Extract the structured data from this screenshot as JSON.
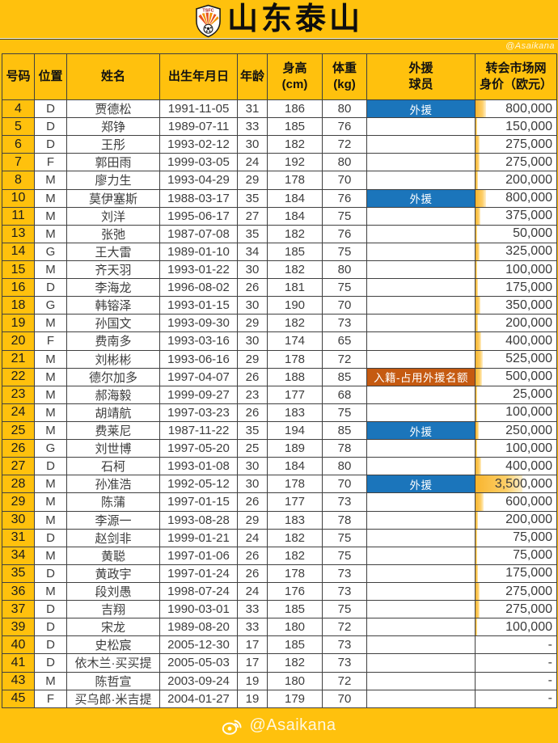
{
  "header": {
    "title": "山东泰山",
    "crest": "tsfc-crest",
    "watermark": "@Asaikana"
  },
  "footer": {
    "icon": "weibo-icon",
    "watermark": "@Asaikana"
  },
  "colors": {
    "background_yellow": "#FFC10D",
    "foreign_badge_blue": "#1B75BB",
    "naturalized_badge_orange": "#C55A11",
    "databar_orange": "#F8B52E"
  },
  "table": {
    "columns": [
      "号码",
      "位置",
      "姓名",
      "出生年月日",
      "年龄",
      "身高\n(cm)",
      "体重\n(kg)",
      "外援\n球员",
      "转会市场网\n身价（欧元）"
    ],
    "badges": {
      "foreign": {
        "label": "外援",
        "bg": "#1B75BB"
      },
      "naturalized": {
        "label": "入籍-占用外援名额",
        "bg": "#C55A11"
      }
    },
    "bar": {
      "max_value": 3500000
    },
    "rows": [
      {
        "no": "4",
        "pos": "D",
        "name": "贾德松",
        "dob": "1991-11-05",
        "age": "31",
        "height": "186",
        "weight": "80",
        "badge": "foreign",
        "value": "800,000"
      },
      {
        "no": "5",
        "pos": "D",
        "name": "郑铮",
        "dob": "1989-07-11",
        "age": "33",
        "height": "185",
        "weight": "76",
        "badge": "",
        "value": "150,000"
      },
      {
        "no": "6",
        "pos": "D",
        "name": "王彤",
        "dob": "1993-02-12",
        "age": "30",
        "height": "182",
        "weight": "72",
        "badge": "",
        "value": "275,000"
      },
      {
        "no": "7",
        "pos": "F",
        "name": "郭田雨",
        "dob": "1999-03-05",
        "age": "24",
        "height": "192",
        "weight": "80",
        "badge": "",
        "value": "275,000"
      },
      {
        "no": "8",
        "pos": "M",
        "name": "廖力生",
        "dob": "1993-04-29",
        "age": "29",
        "height": "178",
        "weight": "70",
        "badge": "",
        "value": "200,000"
      },
      {
        "no": "10",
        "pos": "M",
        "name": "莫伊塞斯",
        "dob": "1988-03-17",
        "age": "35",
        "height": "184",
        "weight": "76",
        "badge": "foreign",
        "value": "800,000"
      },
      {
        "no": "11",
        "pos": "M",
        "name": "刘洋",
        "dob": "1995-06-17",
        "age": "27",
        "height": "184",
        "weight": "75",
        "badge": "",
        "value": "375,000"
      },
      {
        "no": "13",
        "pos": "M",
        "name": "张弛",
        "dob": "1987-07-08",
        "age": "35",
        "height": "182",
        "weight": "76",
        "badge": "",
        "value": "50,000"
      },
      {
        "no": "14",
        "pos": "G",
        "name": "王大雷",
        "dob": "1989-01-10",
        "age": "34",
        "height": "185",
        "weight": "75",
        "badge": "",
        "value": "325,000"
      },
      {
        "no": "15",
        "pos": "M",
        "name": "齐天羽",
        "dob": "1993-01-22",
        "age": "30",
        "height": "182",
        "weight": "80",
        "badge": "",
        "value": "100,000"
      },
      {
        "no": "16",
        "pos": "D",
        "name": "李海龙",
        "dob": "1996-08-02",
        "age": "26",
        "height": "181",
        "weight": "75",
        "badge": "",
        "value": "175,000"
      },
      {
        "no": "18",
        "pos": "G",
        "name": "韩镕泽",
        "dob": "1993-01-15",
        "age": "30",
        "height": "190",
        "weight": "70",
        "badge": "",
        "value": "350,000"
      },
      {
        "no": "19",
        "pos": "M",
        "name": "孙国文",
        "dob": "1993-09-30",
        "age": "29",
        "height": "182",
        "weight": "73",
        "badge": "",
        "value": "200,000"
      },
      {
        "no": "20",
        "pos": "F",
        "name": "费南多",
        "dob": "1993-03-16",
        "age": "30",
        "height": "174",
        "weight": "65",
        "badge": "",
        "value": "400,000"
      },
      {
        "no": "21",
        "pos": "M",
        "name": "刘彬彬",
        "dob": "1993-06-16",
        "age": "29",
        "height": "178",
        "weight": "72",
        "badge": "",
        "value": "525,000"
      },
      {
        "no": "22",
        "pos": "M",
        "name": "德尔加多",
        "dob": "1997-04-07",
        "age": "26",
        "height": "188",
        "weight": "85",
        "badge": "naturalized",
        "value": "500,000"
      },
      {
        "no": "23",
        "pos": "M",
        "name": "郝海毅",
        "dob": "1999-09-27",
        "age": "23",
        "height": "177",
        "weight": "68",
        "badge": "",
        "value": "25,000"
      },
      {
        "no": "24",
        "pos": "M",
        "name": "胡靖航",
        "dob": "1997-03-23",
        "age": "26",
        "height": "183",
        "weight": "75",
        "badge": "",
        "value": "100,000"
      },
      {
        "no": "25",
        "pos": "M",
        "name": "费莱尼",
        "dob": "1987-11-22",
        "age": "35",
        "height": "194",
        "weight": "85",
        "badge": "foreign",
        "value": "250,000"
      },
      {
        "no": "26",
        "pos": "G",
        "name": "刘世博",
        "dob": "1997-05-20",
        "age": "25",
        "height": "189",
        "weight": "78",
        "badge": "",
        "value": "100,000"
      },
      {
        "no": "27",
        "pos": "D",
        "name": "石柯",
        "dob": "1993-01-08",
        "age": "30",
        "height": "184",
        "weight": "80",
        "badge": "",
        "value": "400,000"
      },
      {
        "no": "28",
        "pos": "M",
        "name": "孙准浩",
        "dob": "1992-05-12",
        "age": "30",
        "height": "178",
        "weight": "70",
        "badge": "foreign",
        "value": "3,500,000"
      },
      {
        "no": "29",
        "pos": "M",
        "name": "陈蒲",
        "dob": "1997-01-15",
        "age": "26",
        "height": "177",
        "weight": "73",
        "badge": "",
        "value": "600,000"
      },
      {
        "no": "30",
        "pos": "M",
        "name": "李源一",
        "dob": "1993-08-28",
        "age": "29",
        "height": "183",
        "weight": "78",
        "badge": "",
        "value": "200,000"
      },
      {
        "no": "31",
        "pos": "D",
        "name": "赵剑非",
        "dob": "1999-01-21",
        "age": "24",
        "height": "182",
        "weight": "75",
        "badge": "",
        "value": "75,000"
      },
      {
        "no": "34",
        "pos": "M",
        "name": "黄聪",
        "dob": "1997-01-06",
        "age": "26",
        "height": "182",
        "weight": "75",
        "badge": "",
        "value": "75,000"
      },
      {
        "no": "35",
        "pos": "D",
        "name": "黄政宇",
        "dob": "1997-01-24",
        "age": "26",
        "height": "178",
        "weight": "73",
        "badge": "",
        "value": "175,000"
      },
      {
        "no": "36",
        "pos": "M",
        "name": "段刘愚",
        "dob": "1998-07-24",
        "age": "24",
        "height": "176",
        "weight": "73",
        "badge": "",
        "value": "275,000"
      },
      {
        "no": "37",
        "pos": "D",
        "name": "吉翔",
        "dob": "1990-03-01",
        "age": "33",
        "height": "185",
        "weight": "75",
        "badge": "",
        "value": "275,000"
      },
      {
        "no": "39",
        "pos": "D",
        "name": "宋龙",
        "dob": "1989-08-20",
        "age": "33",
        "height": "180",
        "weight": "72",
        "badge": "",
        "value": "100,000"
      },
      {
        "no": "40",
        "pos": "D",
        "name": "史松宸",
        "dob": "2005-12-30",
        "age": "17",
        "height": "185",
        "weight": "73",
        "badge": "",
        "value": "-"
      },
      {
        "no": "41",
        "pos": "D",
        "name": "依木兰·买买提",
        "dob": "2005-05-03",
        "age": "17",
        "height": "182",
        "weight": "73",
        "badge": "",
        "value": "-"
      },
      {
        "no": "43",
        "pos": "M",
        "name": "陈哲宣",
        "dob": "2003-09-24",
        "age": "19",
        "height": "180",
        "weight": "72",
        "badge": "",
        "value": "-"
      },
      {
        "no": "45",
        "pos": "F",
        "name": "买乌郎·米吉提",
        "dob": "2004-01-27",
        "age": "19",
        "height": "179",
        "weight": "70",
        "badge": "",
        "value": "-"
      }
    ]
  }
}
